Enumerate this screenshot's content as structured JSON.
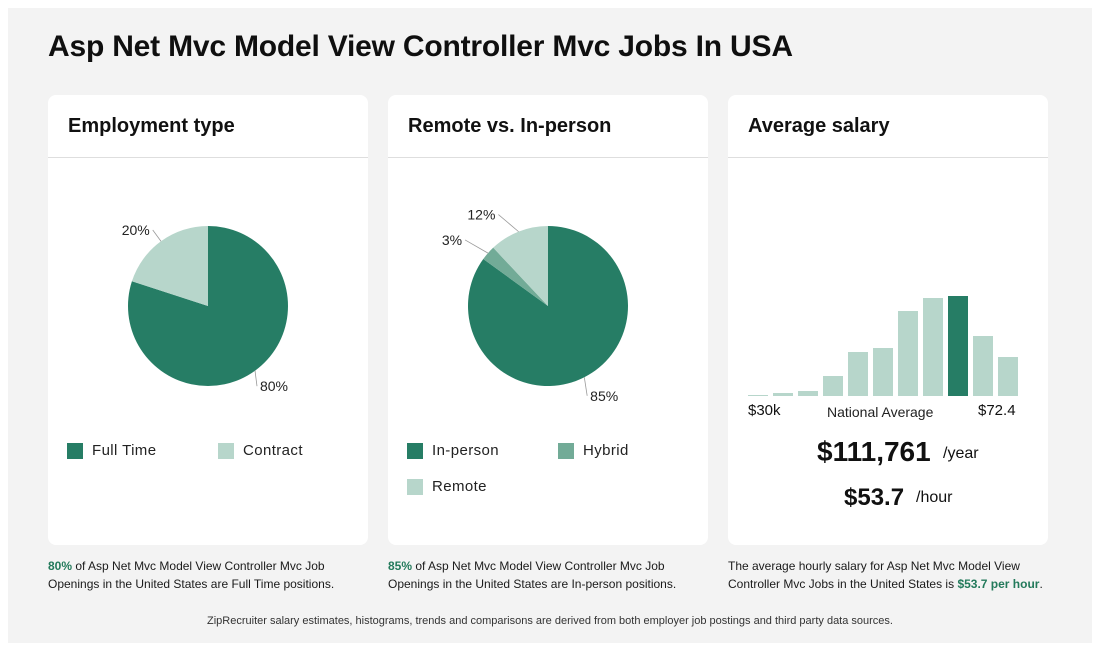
{
  "page": {
    "title": "Asp Net Mvc Model View Controller Mvc Jobs In USA"
  },
  "colors": {
    "dark": "#267d65",
    "mid": "#72ab97",
    "light": "#b7d6cb"
  },
  "employment": {
    "heading": "Employment type",
    "legend": [
      {
        "label": "Full Time",
        "color": "#267d65"
      },
      {
        "label": "Contract",
        "color": "#b7d6cb"
      }
    ],
    "caption": {
      "pct": "80%",
      "text": " of Asp Net Mvc Model View Controller Mvc Job Openings in the United States are Full Time positions."
    }
  },
  "remote": {
    "heading": "Remote vs. In-person",
    "legend": [
      {
        "label": "In-person",
        "color": "#267d65"
      },
      {
        "label": "Hybrid",
        "color": "#72ab97"
      },
      {
        "label": "Remote",
        "color": "#b7d6cb"
      }
    ],
    "caption": {
      "pct": "85%",
      "text": " of Asp Net Mvc Model View Controller Mvc Job Openings in the United States are In-person positions."
    }
  },
  "salary": {
    "heading": "Average salary",
    "min_label": "$30k",
    "mid_label": "National Average",
    "max_label": "$72.4",
    "yearly": "$111,761",
    "yearly_unit": "/year",
    "hourly": "$53.7",
    "hourly_unit": "/hour",
    "caption": {
      "text": "The average hourly salary for Asp Net Mvc Model View Controller Mvc Jobs in the United States is ",
      "highlight": "$53.7 per hour",
      "end": "."
    }
  },
  "footer": "ZipRecruiter salary estimates, histograms, trends and comparisons are derived from both employer job postings and third party data sources.",
  "chart_data": [
    {
      "type": "pie",
      "title": "Employment type",
      "categories": [
        "Full Time",
        "Contract"
      ],
      "values": [
        80,
        20
      ],
      "value_labels": [
        "80%",
        "20%"
      ],
      "colors": [
        "#267d65",
        "#b7d6cb"
      ]
    },
    {
      "type": "pie",
      "title": "Remote vs. In-person",
      "categories": [
        "In-person",
        "Hybrid",
        "Remote"
      ],
      "values": [
        85,
        3,
        12
      ],
      "value_labels": [
        "85%",
        "3%",
        "12%"
      ],
      "colors": [
        "#267d65",
        "#72ab97",
        "#b7d6cb"
      ]
    },
    {
      "type": "bar",
      "title": "Average salary",
      "values": [
        1,
        3,
        5,
        20,
        44,
        48,
        85,
        98,
        100,
        60,
        39
      ],
      "highlight_index": 8,
      "ylim": [
        0,
        100
      ]
    }
  ]
}
